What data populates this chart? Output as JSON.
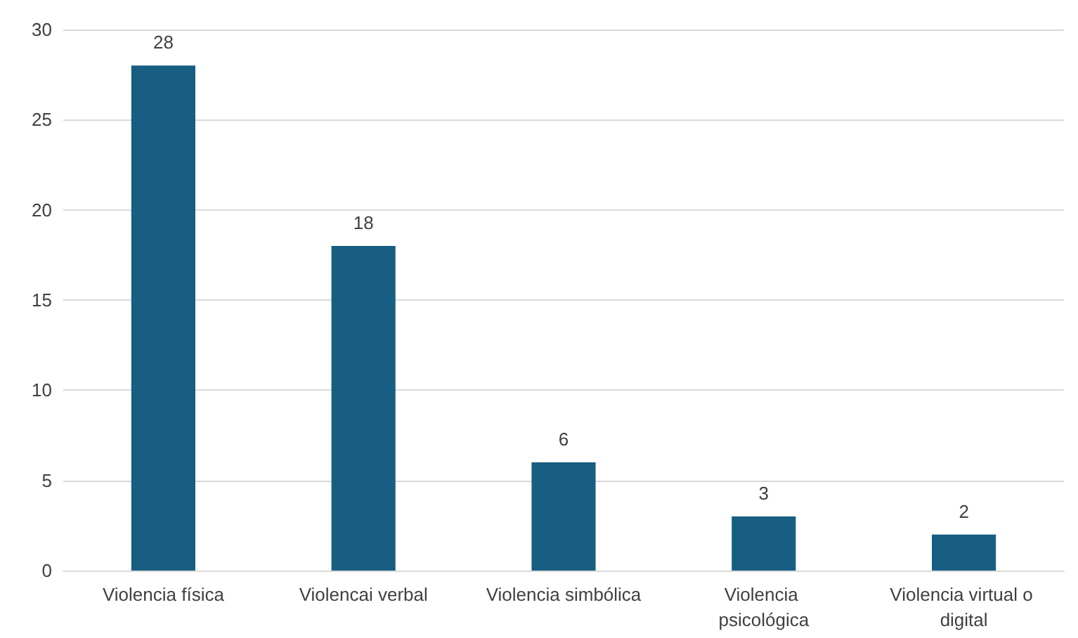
{
  "chart_data": {
    "type": "bar",
    "categories": [
      "Violencia física",
      "Violencai verbal",
      "Violencia simbólica",
      "Violencia psicológica",
      "Violencia virtual o digital"
    ],
    "values": [
      28,
      18,
      6,
      3,
      2
    ],
    "color": "#175e82",
    "ylim": [
      0,
      30
    ],
    "yticks": [
      0,
      5,
      10,
      15,
      20,
      25,
      30
    ],
    "grid": "y",
    "data_labels": true
  }
}
